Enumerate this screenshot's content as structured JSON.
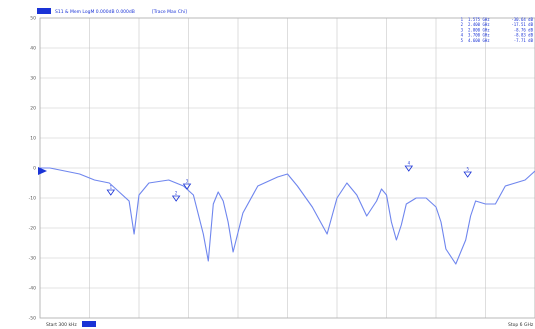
{
  "header": {
    "channel_label": "S11 & Mem LogM 0.000dB  0.000dB",
    "format_label": "[Trace Max Chi]",
    "accent_color": "#1a33d6"
  },
  "marker_table": [
    {
      "num": "1",
      "freq": "1.575 GHz",
      "val": "-30.64 dB"
    },
    {
      "num": "2",
      "freq": "2.400 GHz",
      "val": "-17.51 dB"
    },
    {
      "num": "3",
      "freq": "2.800 GHz",
      "val": "-8.76 dB"
    },
    {
      "num": "4",
      "freq": "3.700 GHz",
      "val": "-8.83 dB"
    },
    {
      "num": "5",
      "freq": "4.600 GHz",
      "val": "-7.71 dB"
    }
  ],
  "footer": {
    "start_label": "Start 300 kHz",
    "stop_label": "Stop 6 GHz"
  },
  "chart_data": {
    "type": "line",
    "ylim": [
      -50,
      50
    ],
    "y_ticks": [
      "50",
      "40",
      "30",
      "20",
      "10",
      "0",
      "-10",
      "-20",
      "-30",
      "-40",
      "-50"
    ],
    "grid": true,
    "reference_level": 0,
    "trace_color": "#6f86ee",
    "series": [
      {
        "x": [
          0,
          0.02,
          0.05,
          0.08,
          0.11,
          0.14,
          0.16,
          0.18,
          0.19,
          0.2,
          0.22,
          0.26,
          0.29,
          0.31,
          0.33,
          0.34,
          0.35,
          0.36,
          0.37,
          0.38,
          0.39,
          0.41,
          0.44,
          0.48,
          0.5,
          0.52,
          0.55,
          0.58,
          0.6,
          0.62,
          0.64,
          0.66,
          0.68,
          0.69,
          0.7,
          0.71,
          0.72,
          0.73,
          0.74,
          0.75,
          0.76,
          0.78,
          0.8,
          0.81,
          0.82,
          0.84,
          0.86,
          0.87,
          0.88,
          0.9,
          0.92,
          0.94,
          0.96,
          0.98,
          1.0
        ],
        "y": [
          0,
          0,
          -1,
          -2,
          -4,
          -5,
          -8,
          -11,
          -22,
          -9,
          -5,
          -4,
          -6,
          -9,
          -22,
          -31,
          -12,
          -8,
          -11,
          -18,
          -28,
          -15,
          -6,
          -3,
          -2,
          -6,
          -13,
          -22,
          -10,
          -5,
          -9,
          -16,
          -11,
          -7,
          -9,
          -18,
          -24,
          -19,
          -12,
          -11,
          -10,
          -10,
          -13,
          -18,
          -27,
          -32,
          -24,
          -16,
          -11,
          -12,
          -12,
          -6,
          -5,
          -4,
          -1
        ]
      }
    ],
    "markers": [
      {
        "label": "1",
        "x": 0.143,
        "y": -9
      },
      {
        "label": "2",
        "x": 0.275,
        "y": -11
      },
      {
        "label": "3",
        "x": 0.297,
        "y": -7
      },
      {
        "label": "4",
        "x": 0.745,
        "y": -1
      },
      {
        "label": "5",
        "x": 0.864,
        "y": -3
      }
    ]
  }
}
